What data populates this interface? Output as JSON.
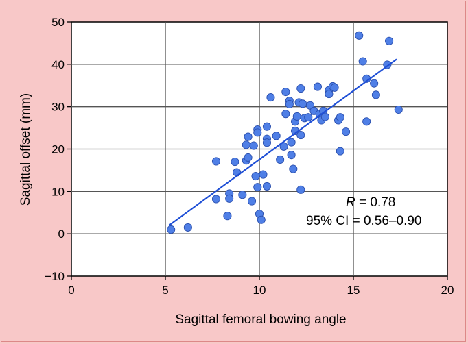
{
  "chart_data": {
    "type": "scatter",
    "xlabel": "Sagittal femoral bowing angle",
    "ylabel": "Sagittal offset (mm)",
    "xlim": [
      0,
      20
    ],
    "ylim": [
      -10,
      50
    ],
    "xticks": [
      "0",
      "5",
      "10",
      "15",
      "20"
    ],
    "yticks": [
      "−10",
      "0",
      "10",
      "20",
      "30",
      "40",
      "50"
    ],
    "grid": true,
    "annotation": {
      "r_symbol": "R",
      "r_value": " = 0.78",
      "ci": "95% CI = 0.56–0.90"
    },
    "trendline": {
      "x": [
        5.2,
        17.3
      ],
      "y": [
        2.0,
        41.2
      ]
    },
    "point_color": "#4f7fe6",
    "line_color": "#1f4fd6",
    "points": [
      [
        5.3,
        1.0
      ],
      [
        6.2,
        1.5
      ],
      [
        7.7,
        17.1
      ],
      [
        7.7,
        8.2
      ],
      [
        8.3,
        4.2
      ],
      [
        8.4,
        9.5
      ],
      [
        8.4,
        8.3
      ],
      [
        8.7,
        17.0
      ],
      [
        8.8,
        14.5
      ],
      [
        9.1,
        9.2
      ],
      [
        9.3,
        17.3
      ],
      [
        9.3,
        21.0
      ],
      [
        9.4,
        22.9
      ],
      [
        9.4,
        18.0
      ],
      [
        9.6,
        7.7
      ],
      [
        9.7,
        20.8
      ],
      [
        9.8,
        13.6
      ],
      [
        9.9,
        24.6
      ],
      [
        9.9,
        23.9
      ],
      [
        9.9,
        11.0
      ],
      [
        10.0,
        4.7
      ],
      [
        10.1,
        3.3
      ],
      [
        10.2,
        14.0
      ],
      [
        10.4,
        25.3
      ],
      [
        10.4,
        22.4
      ],
      [
        10.4,
        21.5
      ],
      [
        10.4,
        11.2
      ],
      [
        10.6,
        32.2
      ],
      [
        10.9,
        23.1
      ],
      [
        11.1,
        17.5
      ],
      [
        11.3,
        20.6
      ],
      [
        11.4,
        33.5
      ],
      [
        11.4,
        28.3
      ],
      [
        11.6,
        31.4
      ],
      [
        11.6,
        30.6
      ],
      [
        11.7,
        21.6
      ],
      [
        11.7,
        18.6
      ],
      [
        11.8,
        15.3
      ],
      [
        11.9,
        26.5
      ],
      [
        11.9,
        24.3
      ],
      [
        12.0,
        27.7
      ],
      [
        12.1,
        31.0
      ],
      [
        12.2,
        34.3
      ],
      [
        12.2,
        23.3
      ],
      [
        12.2,
        10.4
      ],
      [
        12.3,
        30.7
      ],
      [
        12.4,
        27.3
      ],
      [
        12.6,
        27.5
      ],
      [
        12.7,
        30.3
      ],
      [
        12.9,
        29.0
      ],
      [
        13.1,
        34.7
      ],
      [
        13.2,
        28.3
      ],
      [
        13.3,
        26.8
      ],
      [
        13.4,
        29.0
      ],
      [
        13.5,
        27.6
      ],
      [
        13.7,
        33.9
      ],
      [
        13.7,
        33.0
      ],
      [
        13.9,
        34.8
      ],
      [
        14.0,
        34.5
      ],
      [
        14.2,
        26.8
      ],
      [
        14.3,
        27.5
      ],
      [
        14.3,
        19.5
      ],
      [
        14.6,
        24.1
      ],
      [
        15.3,
        46.8
      ],
      [
        15.5,
        40.7
      ],
      [
        15.7,
        36.6
      ],
      [
        15.7,
        26.5
      ],
      [
        16.1,
        35.5
      ],
      [
        16.2,
        32.8
      ],
      [
        16.8,
        39.9
      ],
      [
        16.9,
        45.5
      ],
      [
        17.4,
        29.3
      ]
    ]
  }
}
